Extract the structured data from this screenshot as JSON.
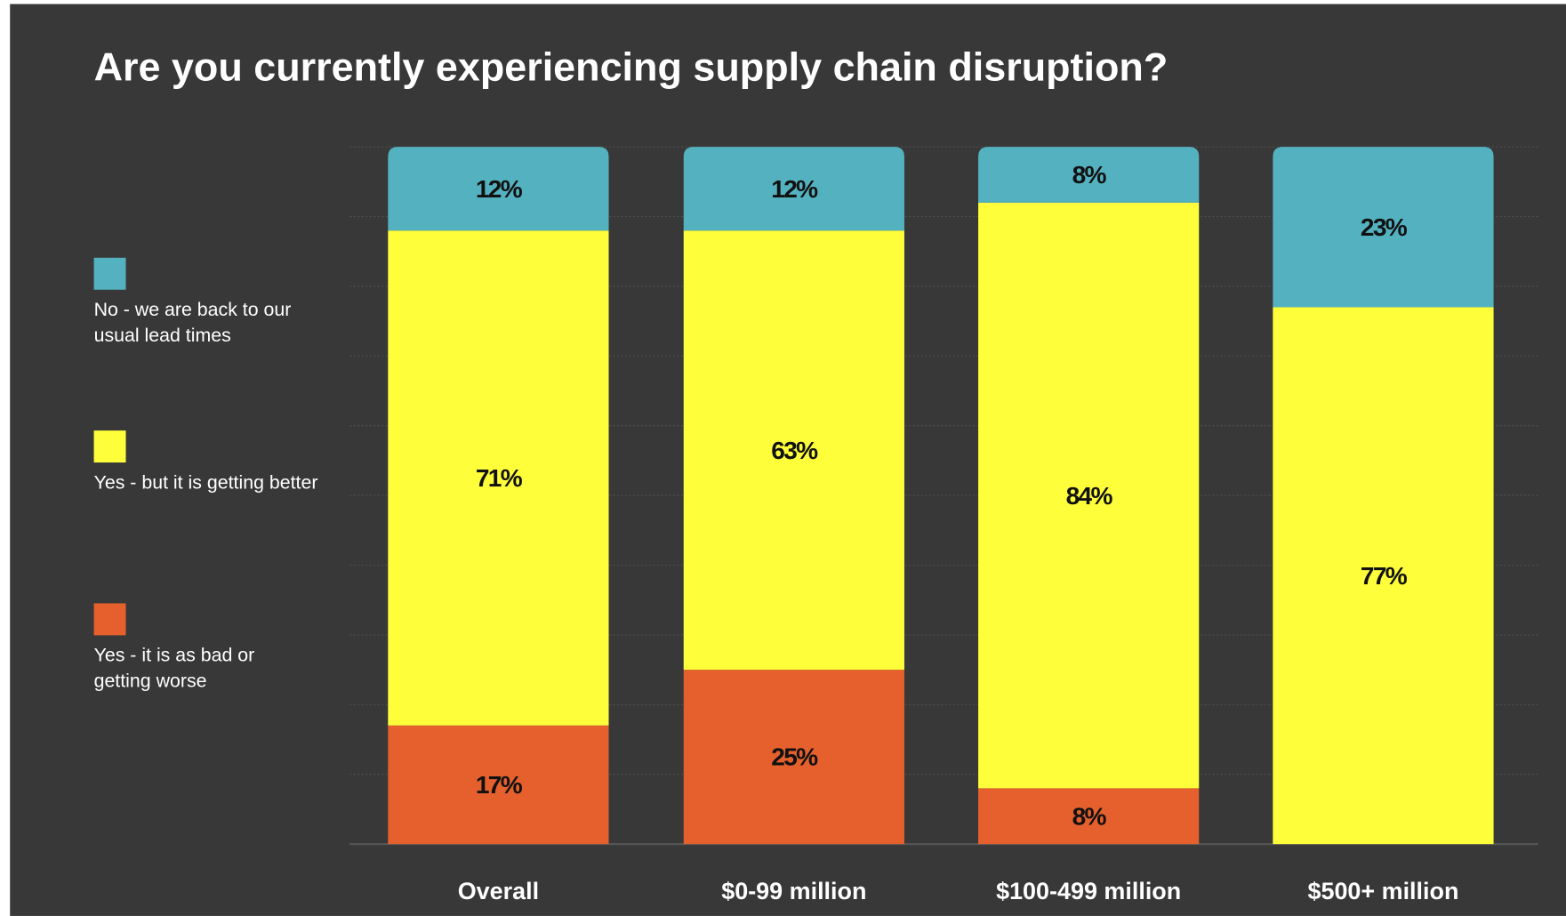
{
  "chart_data": {
    "type": "stacked-bar",
    "title": "Are you currently experiencing supply chain disruption?",
    "categories": [
      "Overall",
      "$0-99 million",
      "$100-499 million",
      "$500+ million"
    ],
    "series": [
      {
        "name": "Yes - it is as bad or getting worse",
        "color": "#e5602d",
        "values": [
          17,
          25,
          8,
          null
        ],
        "value_labels": [
          "17%",
          "25%",
          "8%",
          null
        ]
      },
      {
        "name": "Yes - but it is getting better",
        "color": "#fefe3a",
        "values": [
          71,
          63,
          84,
          77
        ],
        "value_labels": [
          "71%",
          "63%",
          "84%",
          "77%"
        ]
      },
      {
        "name": "No - we are back to our usual lead times",
        "color": "#54b2c0",
        "values": [
          12,
          12,
          8,
          23
        ],
        "value_labels": [
          "12%",
          "12%",
          "8%",
          "23%"
        ]
      }
    ],
    "ylim": [
      0,
      100
    ],
    "yticks": [
      0,
      10,
      20,
      30,
      40,
      50,
      60,
      70,
      80,
      90,
      100
    ],
    "grid": true
  }
}
